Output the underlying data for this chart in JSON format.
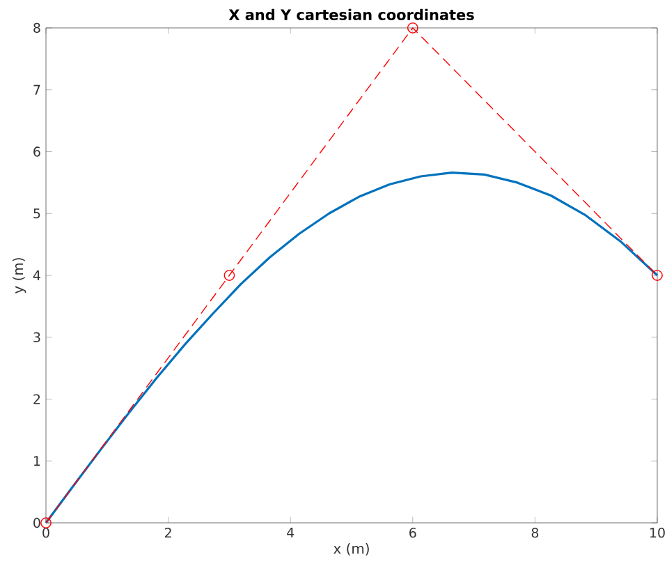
{
  "chart_data": {
    "type": "line",
    "title": "X and Y cartesian coordinates",
    "xlabel": "x (m)",
    "ylabel": "y (m)",
    "xlim": [
      0,
      10
    ],
    "ylim": [
      0,
      8
    ],
    "xticks": [
      0,
      2,
      4,
      6,
      8,
      10
    ],
    "yticks": [
      0,
      1,
      2,
      3,
      4,
      5,
      6,
      7,
      8
    ],
    "series": [
      {
        "color": "#0072bd",
        "marker": "none",
        "line_style": "solid",
        "x": [
          0,
          0.45,
          0.9,
          1.35,
          1.81,
          2.27,
          2.73,
          3.19,
          3.66,
          4.14,
          4.63,
          5.12,
          5.62,
          6.13,
          6.64,
          7.17,
          7.71,
          8.26,
          8.83,
          9.41,
          10
        ],
        "values": [
          0,
          0.6,
          1.19,
          1.77,
          2.34,
          2.88,
          3.38,
          3.86,
          4.29,
          4.67,
          5,
          5.27,
          5.47,
          5.6,
          5.66,
          5.63,
          5.5,
          5.29,
          4.97,
          4.54,
          4
        ]
      },
      {
        "color": "#ff0000",
        "marker": "circle",
        "line_style": "dashed",
        "x": [
          0,
          3,
          6,
          10
        ],
        "values": [
          0,
          4,
          8,
          4
        ]
      }
    ]
  }
}
